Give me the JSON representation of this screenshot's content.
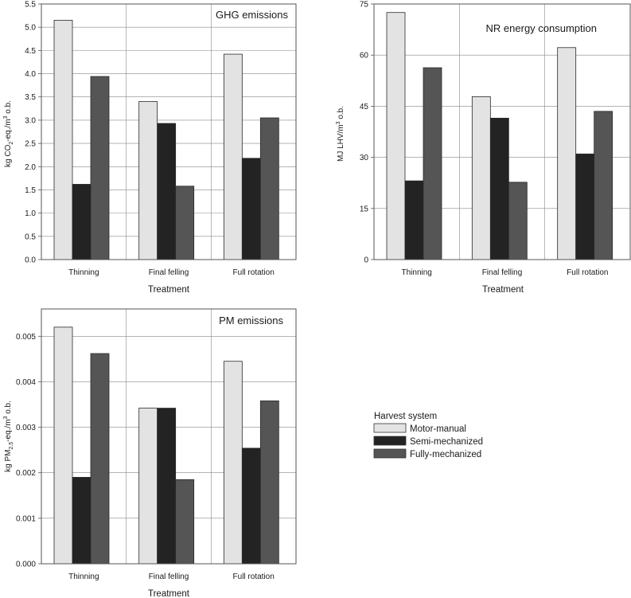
{
  "colors": {
    "Motor-manual": "#e3e3e3",
    "Semi-mechanized": "#232323",
    "Fully-mechanized": "#555555",
    "grid": "#888888",
    "frame": "#555555"
  },
  "legend": {
    "title": "Harvest system",
    "items": [
      "Motor-manual",
      "Semi-mechanized",
      "Fully-mechanized"
    ]
  },
  "chart_data": [
    {
      "type": "bar",
      "title": "GHG emissions",
      "xlabel": "Treatment",
      "ylabel": "kg CO₂-eq./m³ o.b.",
      "categories": [
        "Thinning",
        "Final felling",
        "Full rotation"
      ],
      "ylim": [
        0,
        5.5
      ],
      "yticks": [
        "0.0",
        "0.5",
        "1.0",
        "1.5",
        "2.0",
        "2.5",
        "3.0",
        "3.5",
        "4.0",
        "4.5",
        "5.0",
        "5.5"
      ],
      "ytick_values": [
        0,
        0.5,
        1.0,
        1.5,
        2.0,
        2.5,
        3.0,
        3.5,
        4.0,
        4.5,
        5.0,
        5.5
      ],
      "grid": "horizontal",
      "series": [
        {
          "name": "Motor-manual",
          "values": [
            5.15,
            3.4,
            4.42
          ]
        },
        {
          "name": "Semi-mechanized",
          "values": [
            1.62,
            2.93,
            2.18
          ]
        },
        {
          "name": "Fully-mechanized",
          "values": [
            3.94,
            1.58,
            3.05
          ]
        }
      ]
    },
    {
      "type": "bar",
      "title": "NR energy consumption",
      "xlabel": "Treatment",
      "ylabel": "MJ LHV/m³ o.b.",
      "categories": [
        "Thinning",
        "Final felling",
        "Full rotation"
      ],
      "ylim": [
        0,
        75
      ],
      "yticks": [
        "0",
        "15",
        "30",
        "45",
        "60",
        "75"
      ],
      "ytick_values": [
        0,
        15,
        30,
        45,
        60,
        75
      ],
      "grid": "horizontal",
      "series": [
        {
          "name": "Motor-manual",
          "values": [
            72.5,
            47.8,
            62.2
          ]
        },
        {
          "name": "Semi-mechanized",
          "values": [
            23.1,
            41.5,
            31.0
          ]
        },
        {
          "name": "Fully-mechanized",
          "values": [
            56.3,
            22.7,
            43.5
          ]
        }
      ]
    },
    {
      "type": "bar",
      "title": "PM emissions",
      "xlabel": "Treatment",
      "ylabel": "kg PM₂.₅-eq./m³ o.b.",
      "categories": [
        "Thinning",
        "Final felling",
        "Full rotation"
      ],
      "ylim": [
        0,
        0.0056
      ],
      "yticks": [
        "0.000",
        "0.001",
        "0.002",
        "0.003",
        "0.004",
        "0.005"
      ],
      "ytick_values": [
        0,
        0.001,
        0.002,
        0.003,
        0.004,
        0.005
      ],
      "grid": "horizontal",
      "series": [
        {
          "name": "Motor-manual",
          "values": [
            0.0052,
            0.00342,
            0.00445
          ]
        },
        {
          "name": "Semi-mechanized",
          "values": [
            0.0019,
            0.00342,
            0.00254
          ]
        },
        {
          "name": "Fully-mechanized",
          "values": [
            0.00462,
            0.00185,
            0.00358
          ]
        }
      ]
    }
  ]
}
